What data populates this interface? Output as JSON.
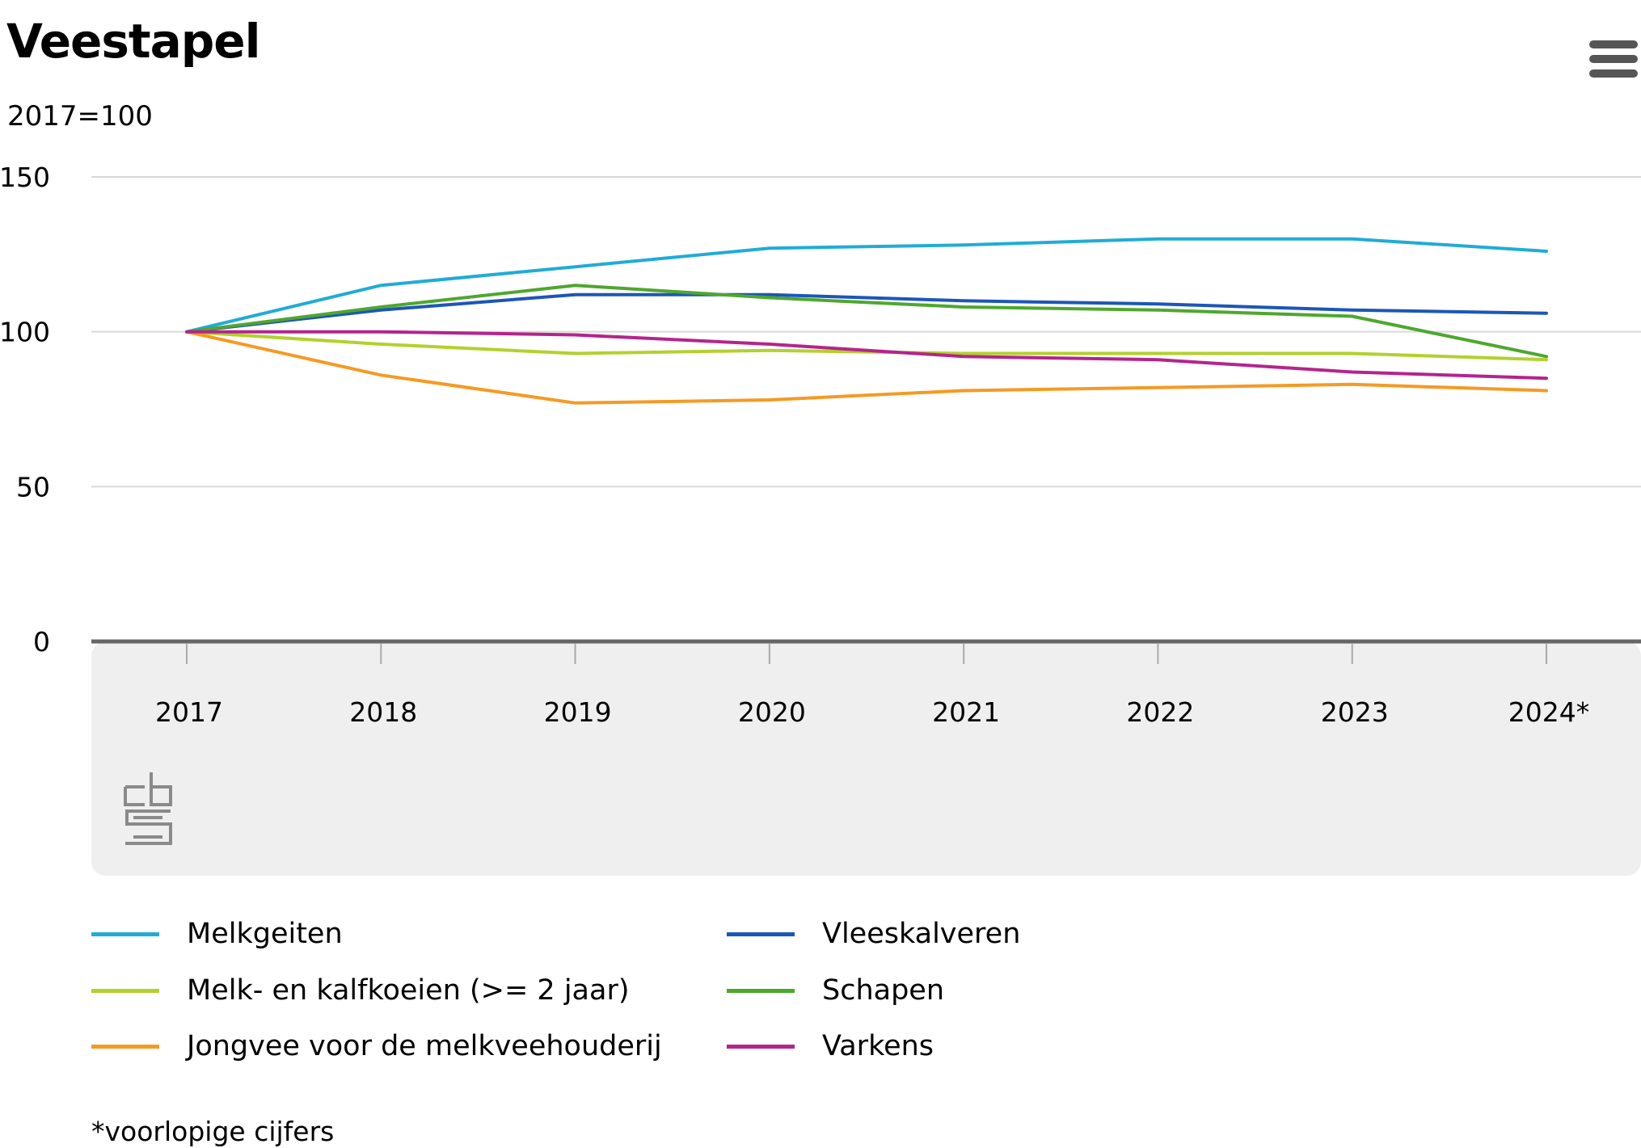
{
  "header": {
    "title": "Veestapel",
    "subtitle": "2017=100"
  },
  "menu": {
    "icon": "hamburger-menu-icon"
  },
  "logo": {
    "icon": "cbs-logo-icon",
    "text": "cbs"
  },
  "footnote": "*voorlopige cijfers",
  "chart_data": {
    "type": "line",
    "title": "Veestapel",
    "subtitle": "2017=100",
    "xlabel": "",
    "ylabel": "",
    "categories": [
      "2017",
      "2018",
      "2019",
      "2020",
      "2021",
      "2022",
      "2023",
      "2024*"
    ],
    "yticks": [
      0,
      50,
      100,
      150
    ],
    "ylim": [
      0,
      150
    ],
    "grid": true,
    "legend_position": "bottom",
    "series": [
      {
        "name": "Melkgeiten",
        "color": "#20acd6",
        "values": [
          100,
          115,
          121,
          127,
          128,
          130,
          130,
          126
        ]
      },
      {
        "name": "Vleeskalveren",
        "color": "#1c56b8",
        "values": [
          100,
          107,
          112,
          112,
          110,
          109,
          107,
          106
        ]
      },
      {
        "name": "Melk- en kalfkoeien (>= 2 jaar)",
        "color": "#b3d12d",
        "values": [
          100,
          96,
          93,
          94,
          93,
          93,
          93,
          91
        ]
      },
      {
        "name": "Schapen",
        "color": "#4ea72e",
        "values": [
          100,
          108,
          115,
          111,
          108,
          107,
          105,
          92
        ]
      },
      {
        "name": "Jongvee voor de melkveehouderij",
        "color": "#f59a23",
        "values": [
          100,
          86,
          77,
          78,
          81,
          82,
          83,
          81
        ]
      },
      {
        "name": "Varkens",
        "color": "#b5248c",
        "values": [
          100,
          100,
          99,
          96,
          92,
          91,
          87,
          85
        ]
      }
    ]
  }
}
